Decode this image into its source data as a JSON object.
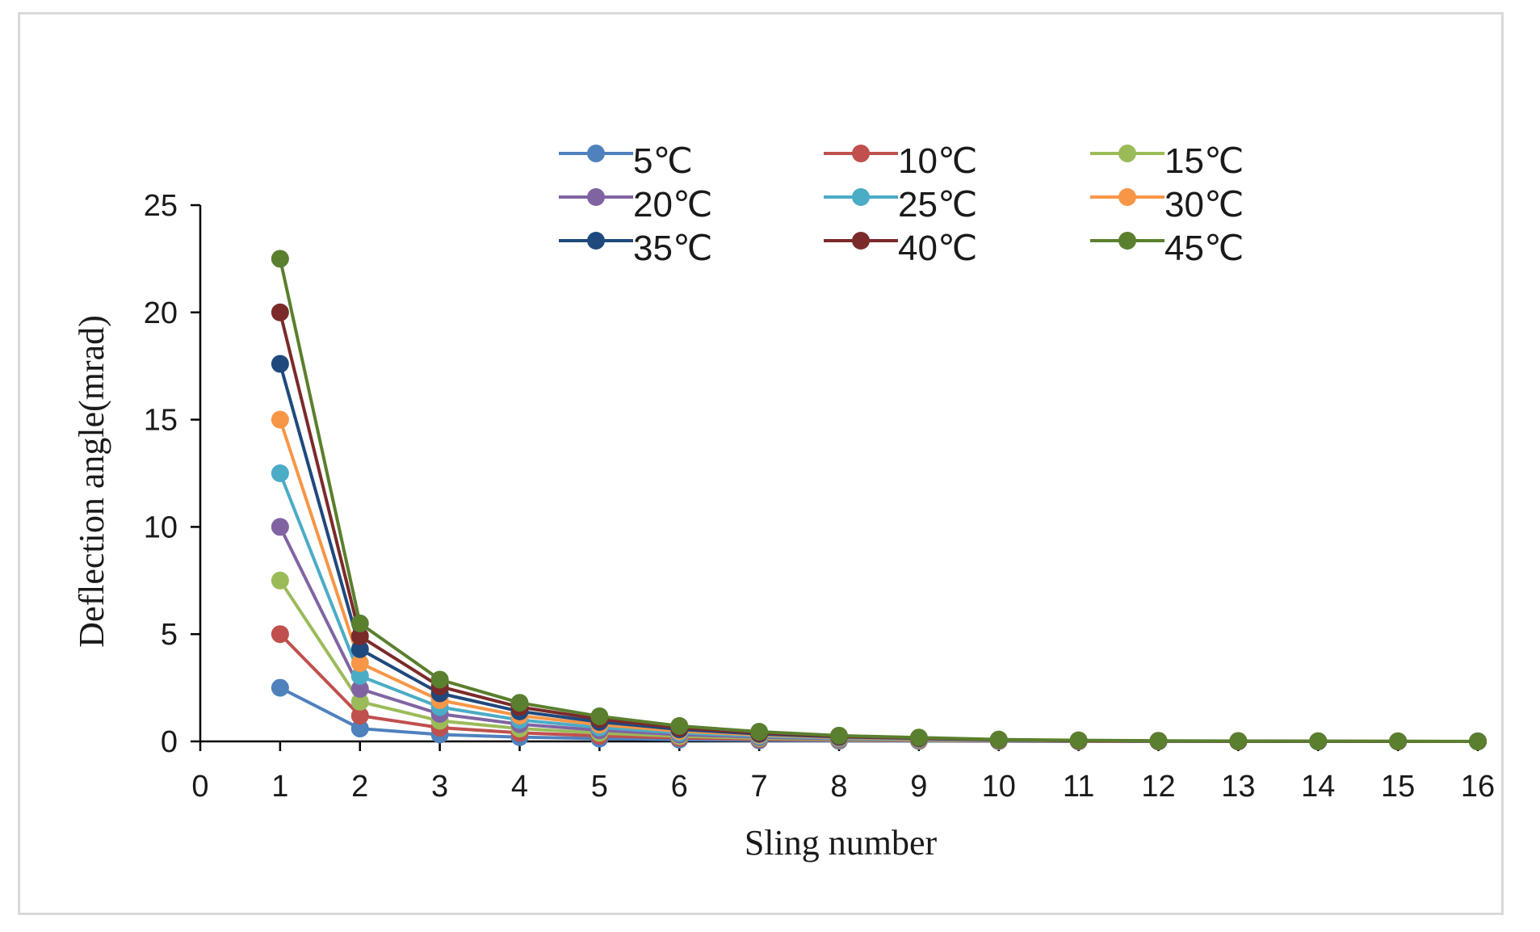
{
  "chart_data": {
    "type": "line",
    "title": "",
    "xlabel": "Sling number",
    "ylabel": "Deflection angle(mrad)",
    "xlim": [
      0,
      16
    ],
    "ylim": [
      0,
      25
    ],
    "x_ticks": [
      0,
      1,
      2,
      3,
      4,
      5,
      6,
      7,
      8,
      9,
      10,
      11,
      12,
      13,
      14,
      15,
      16
    ],
    "y_ticks": [
      0,
      5,
      10,
      15,
      20,
      25
    ],
    "grid": false,
    "legend_position": "top",
    "x": [
      1,
      2,
      3,
      4,
      5,
      6,
      7,
      8,
      9,
      10,
      11,
      12,
      13,
      14,
      15,
      16
    ],
    "series": [
      {
        "name": "5℃",
        "color": "#4f81bd",
        "values": [
          2.5,
          0.6,
          0.32,
          0.2,
          0.13,
          0.08,
          0.05,
          0.03,
          0.02,
          0.01,
          0,
          0,
          0,
          0,
          0,
          0
        ]
      },
      {
        "name": "10℃",
        "color": "#c0504d",
        "values": [
          5.0,
          1.2,
          0.64,
          0.4,
          0.26,
          0.16,
          0.1,
          0.06,
          0.04,
          0.02,
          0.01,
          0,
          0,
          0,
          0,
          0
        ]
      },
      {
        "name": "15℃",
        "color": "#9bbb59",
        "values": [
          7.5,
          1.85,
          0.96,
          0.6,
          0.39,
          0.24,
          0.15,
          0.09,
          0.06,
          0.03,
          0.02,
          0.01,
          0,
          0,
          0,
          0
        ]
      },
      {
        "name": "20℃",
        "color": "#8064a2",
        "values": [
          10.0,
          2.45,
          1.28,
          0.8,
          0.52,
          0.32,
          0.2,
          0.12,
          0.08,
          0.04,
          0.02,
          0.01,
          0,
          0,
          0,
          0
        ]
      },
      {
        "name": "25℃",
        "color": "#4bacc6",
        "values": [
          12.5,
          3.05,
          1.6,
          1.0,
          0.65,
          0.4,
          0.25,
          0.15,
          0.1,
          0.05,
          0.03,
          0.01,
          0.01,
          0,
          0,
          0
        ]
      },
      {
        "name": "30℃",
        "color": "#f79646",
        "values": [
          15.0,
          3.65,
          1.92,
          1.2,
          0.78,
          0.48,
          0.3,
          0.18,
          0.12,
          0.06,
          0.03,
          0.02,
          0.01,
          0,
          0,
          0
        ]
      },
      {
        "name": "35℃",
        "color": "#1f497d",
        "values": [
          17.6,
          4.3,
          2.24,
          1.4,
          0.91,
          0.56,
          0.35,
          0.21,
          0.14,
          0.07,
          0.04,
          0.02,
          0.01,
          0,
          0,
          0
        ]
      },
      {
        "name": "40℃",
        "color": "#7b2a2a",
        "values": [
          20.0,
          4.9,
          2.56,
          1.6,
          1.04,
          0.64,
          0.4,
          0.24,
          0.16,
          0.08,
          0.04,
          0.02,
          0.01,
          0.01,
          0,
          0
        ]
      },
      {
        "name": "45℃",
        "color": "#5a7f2e",
        "values": [
          22.5,
          5.5,
          2.88,
          1.8,
          1.17,
          0.72,
          0.45,
          0.27,
          0.18,
          0.09,
          0.05,
          0.03,
          0.02,
          0.01,
          0.01,
          0
        ]
      }
    ]
  }
}
